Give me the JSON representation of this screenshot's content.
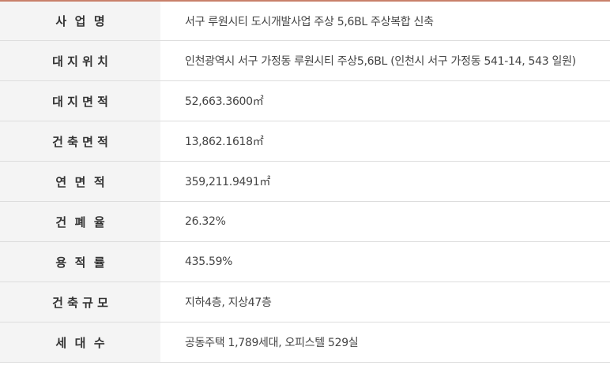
{
  "accent_color": "#c8806a",
  "rows": [
    {
      "label": "사  업  명",
      "value": "서구 루원시티 도시개발사업 주상 5,6BL 주상복합 신축"
    },
    {
      "label": "대 지 위 치",
      "value": "인천광역시 서구 가정동 루원시티 주상5,6BL (인천시 서구 가정동 541-14, 543 일원)"
    },
    {
      "label": "대 지 면 적",
      "value": "52,663.3600㎡"
    },
    {
      "label": "건 축 면 적",
      "value": "13,862.1618㎡"
    },
    {
      "label": "연  면  적",
      "value": "359,211.9491㎡"
    },
    {
      "label": "건  폐  율",
      "value": "26.32%"
    },
    {
      "label": "용  적  률",
      "value": "435.59%"
    },
    {
      "label": "건 축 규 모",
      "value": "지하4층, 지상47층"
    },
    {
      "label": "세  대  수",
      "value": "공동주택 1,789세대, 오피스텔 529실"
    }
  ]
}
